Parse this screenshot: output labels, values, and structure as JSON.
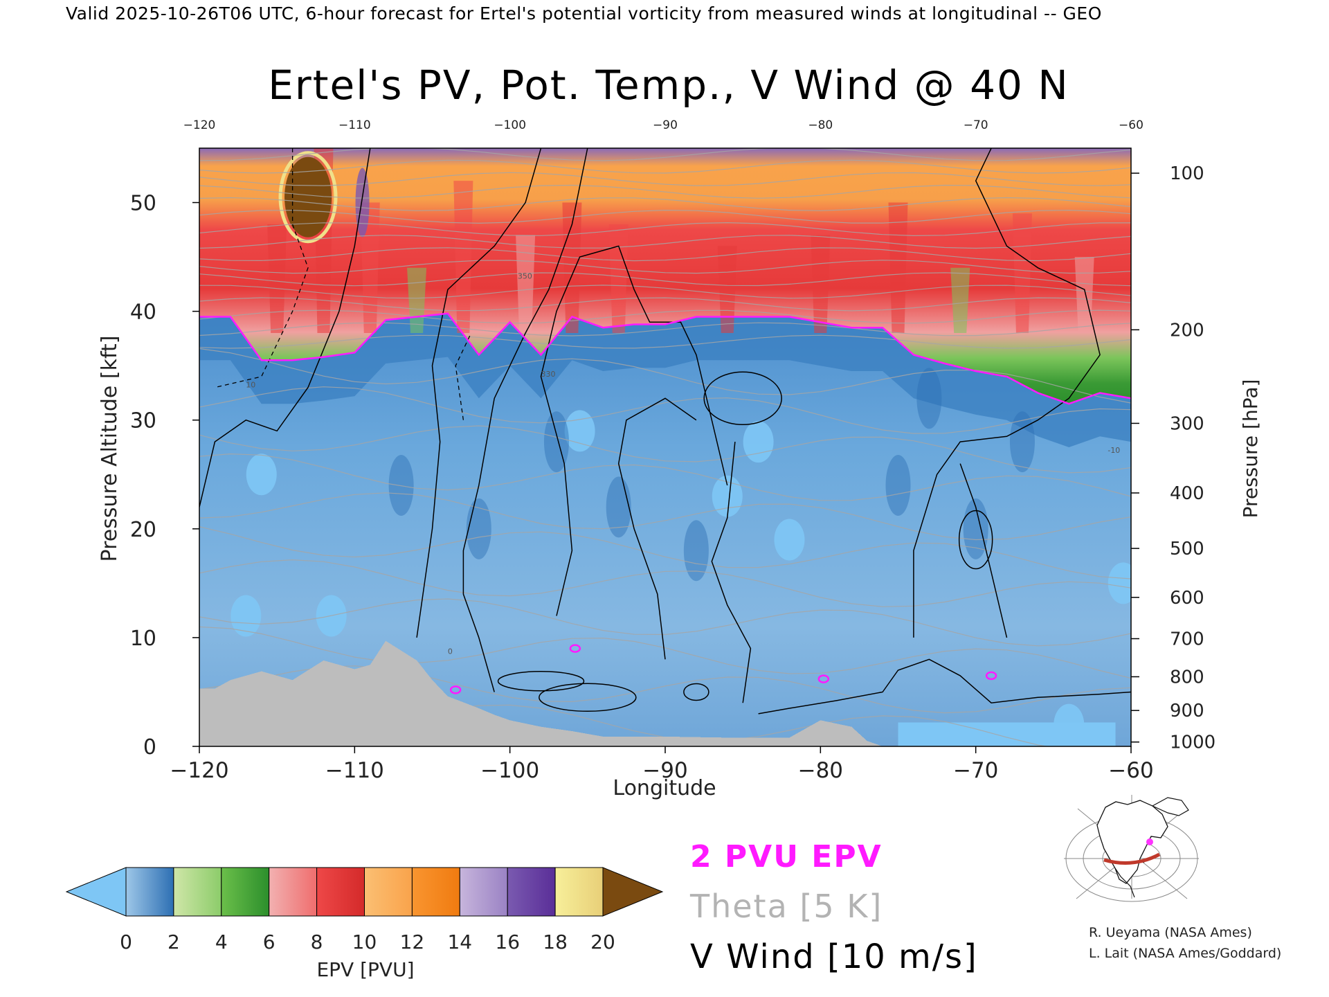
{
  "header": {
    "valid_line": "Valid 2025-10-26T06 UTC, 6-hour forecast for Ertel's potential vorticity from measured winds at longitudinal -- GEO"
  },
  "chart_data": {
    "type": "heatmap",
    "title": "Ertel's PV, Pot. Temp., V Wind @ 40 N",
    "xlabel": "Longitude",
    "ylabel_left": "Pressure Altitude [kft]",
    "ylabel_right": "Pressure [hPa]",
    "xlim": [
      -120,
      -60
    ],
    "ylim": [
      0,
      55
    ],
    "x_ticks": [
      -120,
      -110,
      -100,
      -90,
      -80,
      -70,
      -60
    ],
    "y_ticks": [
      0,
      10,
      20,
      30,
      40,
      50
    ],
    "top_ticks": [
      -120,
      -110,
      -100,
      -90,
      -80,
      -70,
      -60
    ],
    "pressure_ticks": [
      {
        "hpa": 1000,
        "kft": 0.4
      },
      {
        "hpa": 900,
        "kft": 3.3
      },
      {
        "hpa": 800,
        "kft": 6.4
      },
      {
        "hpa": 700,
        "kft": 9.9
      },
      {
        "hpa": 600,
        "kft": 13.7
      },
      {
        "hpa": 500,
        "kft": 18.2
      },
      {
        "hpa": 400,
        "kft": 23.3
      },
      {
        "hpa": 300,
        "kft": 29.7
      },
      {
        "hpa": 200,
        "kft": 38.3
      },
      {
        "hpa": 100,
        "kft": 52.7
      }
    ],
    "colorbar": {
      "label": "EPV [PVU]",
      "ticks": [
        0,
        2,
        4,
        6,
        8,
        10,
        12,
        14,
        16,
        18,
        20
      ],
      "under_color": "#7ec6f5",
      "over_color": "#7a4a10",
      "bins": [
        {
          "from": 0,
          "to": 2,
          "c1": "#9ec7e8",
          "c2": "#2d6fb3"
        },
        {
          "from": 2,
          "to": 4,
          "c1": "#cfe6a8",
          "c2": "#8ccc6a"
        },
        {
          "from": 4,
          "to": 6,
          "c1": "#6bbf4a",
          "c2": "#2c8f2c"
        },
        {
          "from": 6,
          "to": 8,
          "c1": "#f2b1b1",
          "c2": "#ef6d6d"
        },
        {
          "from": 8,
          "to": 10,
          "c1": "#ee4848",
          "c2": "#d42a2a"
        },
        {
          "from": 10,
          "to": 12,
          "c1": "#fbbf73",
          "c2": "#f9a34b"
        },
        {
          "from": 12,
          "to": 14,
          "c1": "#f99530",
          "c2": "#f07b10"
        },
        {
          "from": 14,
          "to": 16,
          "c1": "#c7b5dc",
          "c2": "#9a82c4"
        },
        {
          "from": 16,
          "to": 18,
          "c1": "#7a5ab0",
          "c2": "#5a2e98"
        },
        {
          "from": 18,
          "to": 20,
          "c1": "#f7ef9a",
          "c2": "#e8cf78"
        }
      ]
    },
    "tropopause_2pvu_kft": [
      {
        "lon": -120,
        "kft": 39.5
      },
      {
        "lon": -118,
        "kft": 39.5
      },
      {
        "lon": -116,
        "kft": 35.5
      },
      {
        "lon": -114,
        "kft": 35.5
      },
      {
        "lon": -112,
        "kft": 35.8
      },
      {
        "lon": -110,
        "kft": 36.2
      },
      {
        "lon": -108,
        "kft": 39.2
      },
      {
        "lon": -106,
        "kft": 39.5
      },
      {
        "lon": -104,
        "kft": 39.8
      },
      {
        "lon": -102,
        "kft": 36.0
      },
      {
        "lon": -100,
        "kft": 39.0
      },
      {
        "lon": -98,
        "kft": 36.0
      },
      {
        "lon": -96,
        "kft": 39.5
      },
      {
        "lon": -94,
        "kft": 38.5
      },
      {
        "lon": -92,
        "kft": 38.8
      },
      {
        "lon": -90,
        "kft": 38.8
      },
      {
        "lon": -88,
        "kft": 39.5
      },
      {
        "lon": -86,
        "kft": 39.5
      },
      {
        "lon": -84,
        "kft": 39.5
      },
      {
        "lon": -82,
        "kft": 39.5
      },
      {
        "lon": -80,
        "kft": 39.0
      },
      {
        "lon": -78,
        "kft": 38.5
      },
      {
        "lon": -76,
        "kft": 38.5
      },
      {
        "lon": -74,
        "kft": 36.0
      },
      {
        "lon": -72,
        "kft": 35.2
      },
      {
        "lon": -70,
        "kft": 34.5
      },
      {
        "lon": -68,
        "kft": 34.0
      },
      {
        "lon": -66,
        "kft": 32.5
      },
      {
        "lon": -64,
        "kft": 31.5
      },
      {
        "lon": -62,
        "kft": 32.5
      },
      {
        "lon": -60,
        "kft": 32.0
      }
    ],
    "terrain_kft": [
      {
        "lon": -120,
        "kft": 5.3
      },
      {
        "lon": -119,
        "kft": 5.3
      },
      {
        "lon": -118,
        "kft": 6.1
      },
      {
        "lon": -116,
        "kft": 6.9
      },
      {
        "lon": -114,
        "kft": 6.1
      },
      {
        "lon": -112,
        "kft": 7.9
      },
      {
        "lon": -110,
        "kft": 7.1
      },
      {
        "lon": -109,
        "kft": 7.5
      },
      {
        "lon": -108,
        "kft": 9.7
      },
      {
        "lon": -106,
        "kft": 7.9
      },
      {
        "lon": -105,
        "kft": 6.1
      },
      {
        "lon": -104,
        "kft": 4.6
      },
      {
        "lon": -102,
        "kft": 3.5
      },
      {
        "lon": -101,
        "kft": 2.9
      },
      {
        "lon": -100,
        "kft": 2.4
      },
      {
        "lon": -98,
        "kft": 1.8
      },
      {
        "lon": -96,
        "kft": 1.4
      },
      {
        "lon": -94,
        "kft": 0.9
      },
      {
        "lon": -90,
        "kft": 0.9
      },
      {
        "lon": -86,
        "kft": 0.8
      },
      {
        "lon": -82,
        "kft": 0.8
      },
      {
        "lon": -80,
        "kft": 2.4
      },
      {
        "lon": -78,
        "kft": 1.8
      },
      {
        "lon": -77,
        "kft": 0.5
      },
      {
        "lon": -76,
        "kft": 0.0
      },
      {
        "lon": -60,
        "kft": 0.0
      }
    ],
    "theta_label_values": [
      "330",
      "350",
      "10",
      "-10",
      "0"
    ],
    "legend": [
      {
        "label": "2 PVU EPV",
        "color": "#ff1aff"
      },
      {
        "label": "Theta [5 K]",
        "color": "#b3b3b3"
      },
      {
        "label": "V Wind [10 m/s]",
        "color": "#000000"
      }
    ]
  },
  "credits": {
    "line1": "R. Ueyama (NASA Ames)",
    "line2": "L. Lait (NASA Ames/Goddard)"
  },
  "inset_map": {
    "line_color": "#c0392b",
    "marker_color": "#ff33ff"
  }
}
